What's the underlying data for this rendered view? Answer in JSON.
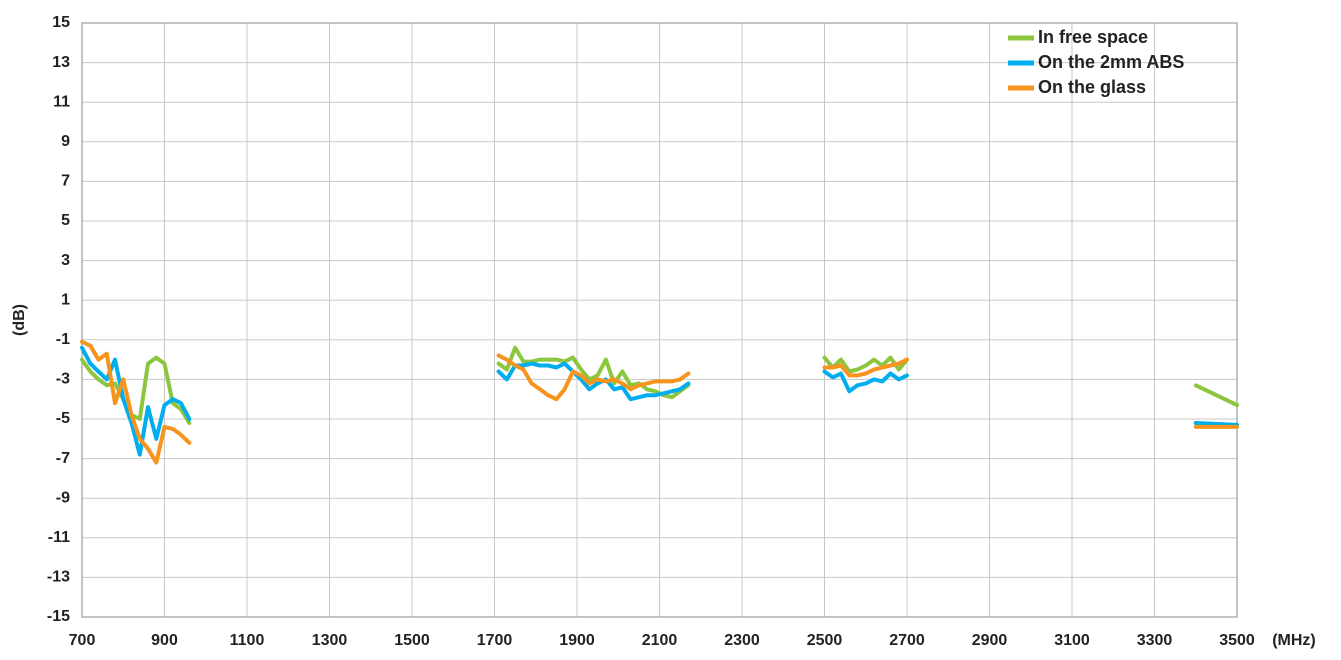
{
  "chart_data": {
    "type": "line",
    "y_label": "(dB)",
    "x_label": "(MHz)",
    "x": [
      700,
      720,
      740,
      760,
      780,
      800,
      820,
      840,
      860,
      880,
      900,
      920,
      940,
      960,
      1300,
      1710,
      1730,
      1750,
      1770,
      1790,
      1810,
      1830,
      1850,
      1870,
      1890,
      1910,
      1930,
      1950,
      1970,
      1990,
      2010,
      2030,
      2050,
      2070,
      2090,
      2110,
      2130,
      2150,
      2170,
      2300,
      2500,
      2520,
      2540,
      2560,
      2580,
      2600,
      2620,
      2640,
      2660,
      2680,
      2700,
      3000,
      3400,
      3500
    ],
    "series": [
      {
        "name": "In free space",
        "color": "#8cc63f",
        "values": [
          -2.0,
          -2.6,
          -3.0,
          -3.3,
          -3.2,
          -4.0,
          -4.8,
          -5.0,
          -2.2,
          -1.9,
          -2.2,
          -4.2,
          -4.5,
          -5.2,
          null,
          -2.2,
          -2.5,
          -1.4,
          -2.1,
          -2.1,
          -2.0,
          -2.0,
          -2.0,
          -2.1,
          -1.9,
          -2.5,
          -3.0,
          -2.8,
          -2.0,
          -3.2,
          -2.6,
          -3.3,
          -3.2,
          -3.5,
          -3.6,
          -3.8,
          -3.9,
          -3.6,
          -3.3,
          null,
          -1.9,
          -2.4,
          -2.0,
          -2.6,
          -2.5,
          -2.3,
          -2.0,
          -2.3,
          -1.9,
          -2.5,
          -2.0,
          null,
          -3.3,
          -4.3
        ]
      },
      {
        "name": "On the 2mm ABS",
        "color": "#00aeef",
        "values": [
          -1.4,
          -2.2,
          -2.6,
          -3.0,
          -2.0,
          -4.0,
          -5.2,
          -6.8,
          -4.4,
          -6.0,
          -4.3,
          -4.0,
          -4.2,
          -5.0,
          null,
          -2.6,
          -3.0,
          -2.3,
          -2.3,
          -2.2,
          -2.3,
          -2.3,
          -2.4,
          -2.2,
          -2.6,
          -3.0,
          -3.5,
          -3.2,
          -3.0,
          -3.5,
          -3.4,
          -4.0,
          -3.9,
          -3.8,
          -3.8,
          -3.7,
          -3.6,
          -3.5,
          -3.2,
          null,
          -2.6,
          -2.9,
          -2.7,
          -3.6,
          -3.3,
          -3.2,
          -3.0,
          -3.1,
          -2.7,
          -3.0,
          -2.8,
          null,
          -5.2,
          -5.3
        ]
      },
      {
        "name": "On the glass",
        "color": "#f7941d",
        "values": [
          -1.1,
          -1.3,
          -2.0,
          -1.7,
          -4.2,
          -3.0,
          -4.8,
          -6.0,
          -6.5,
          -7.2,
          -5.4,
          -5.5,
          -5.8,
          -6.2,
          null,
          -1.8,
          -2.0,
          -2.3,
          -2.5,
          -3.2,
          -3.5,
          -3.8,
          -4.0,
          -3.5,
          -2.6,
          -2.8,
          -3.2,
          -3.0,
          -3.1,
          -3.0,
          -3.2,
          -3.5,
          -3.3,
          -3.2,
          -3.1,
          -3.1,
          -3.1,
          -3.0,
          -2.7,
          null,
          -2.4,
          -2.4,
          -2.3,
          -2.8,
          -2.8,
          -2.7,
          -2.5,
          -2.4,
          -2.3,
          -2.2,
          -2.0,
          null,
          -5.4,
          -5.4
        ]
      }
    ],
    "xlim": [
      700,
      3500
    ],
    "xticks": [
      700,
      900,
      1100,
      1300,
      1500,
      1700,
      1900,
      2100,
      2300,
      2500,
      2700,
      2900,
      3100,
      3300,
      3500
    ],
    "ylim": [
      -15,
      15
    ],
    "yticks": [
      -15,
      -13,
      -11,
      -9,
      -7,
      -5,
      -3,
      -1,
      1,
      3,
      5,
      7,
      9,
      11,
      13,
      15
    ],
    "grid": true,
    "legend": "upper-right"
  }
}
